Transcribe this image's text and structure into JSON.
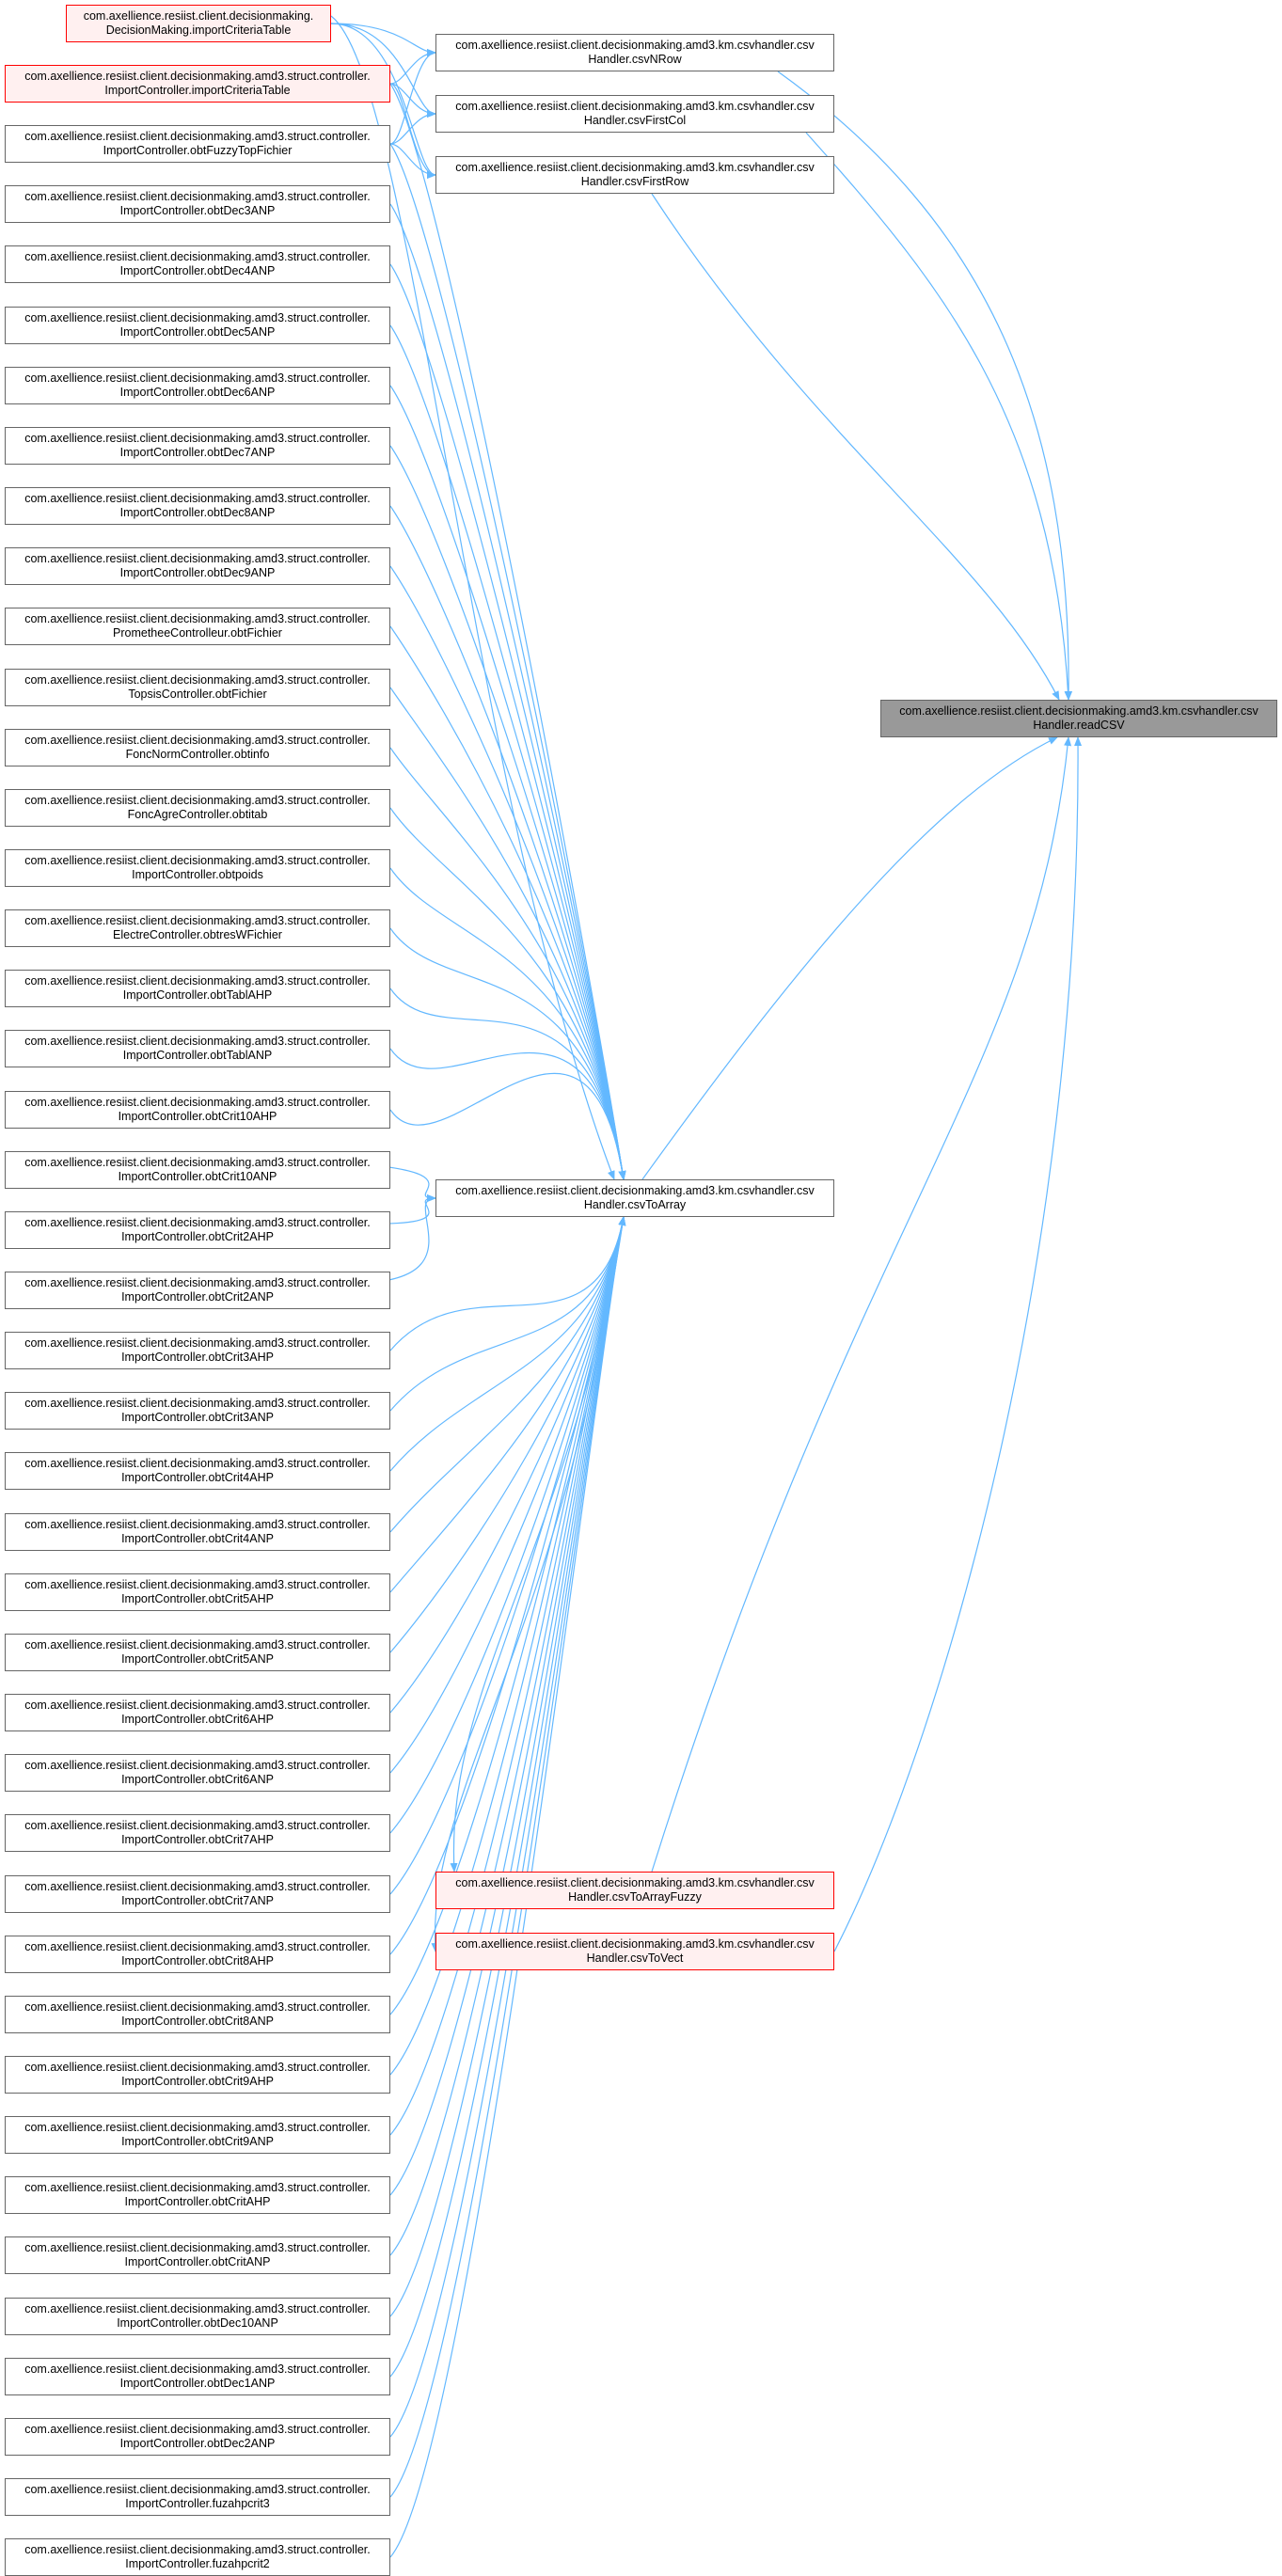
{
  "target": {
    "line1": "com.axellience.resiist.client.decisionmaking.amd3.km.csvhandler.csv",
    "line2": "Handler.readCSV"
  },
  "middle": [
    {
      "id": "csvNRow",
      "line1": "com.axellience.resiist.client.decisionmaking.amd3.km.csvhandler.csv",
      "line2": "Handler.csvNRow",
      "highlight": false
    },
    {
      "id": "csvFirstCol",
      "line1": "com.axellience.resiist.client.decisionmaking.amd3.km.csvhandler.csv",
      "line2": "Handler.csvFirstCol",
      "highlight": false
    },
    {
      "id": "csvFirstRow",
      "line1": "com.axellience.resiist.client.decisionmaking.amd3.km.csvhandler.csv",
      "line2": "Handler.csvFirstRow",
      "highlight": false
    },
    {
      "id": "csvToArray",
      "line1": "com.axellience.resiist.client.decisionmaking.amd3.km.csvhandler.csv",
      "line2": "Handler.csvToArray",
      "highlight": false
    },
    {
      "id": "csvToArrayFuzzy",
      "line1": "com.axellience.resiist.client.decisionmaking.amd3.km.csvhandler.csv",
      "line2": "Handler.csvToArrayFuzzy",
      "highlight": true
    },
    {
      "id": "csvToVect",
      "line1": "com.axellience.resiist.client.decisionmaking.amd3.km.csvhandler.csv",
      "line2": "Handler.csvToVect",
      "highlight": true
    }
  ],
  "callers": [
    {
      "line1": "com.axellience.resiist.client.decisionmaking.",
      "line2": "DecisionMaking.importCriteriaTable",
      "highlight": true
    },
    {
      "line1": "com.axellience.resiist.client.decisionmaking.amd3.struct.controller.",
      "line2": "ImportController.importCriteriaTable",
      "highlight": true
    },
    {
      "line1": "com.axellience.resiist.client.decisionmaking.amd3.struct.controller.",
      "line2": "ImportController.obtFuzzyTopFichier",
      "highlight": false
    },
    {
      "line1": "com.axellience.resiist.client.decisionmaking.amd3.struct.controller.",
      "line2": "ImportController.obtDec3ANP",
      "highlight": false
    },
    {
      "line1": "com.axellience.resiist.client.decisionmaking.amd3.struct.controller.",
      "line2": "ImportController.obtDec4ANP",
      "highlight": false
    },
    {
      "line1": "com.axellience.resiist.client.decisionmaking.amd3.struct.controller.",
      "line2": "ImportController.obtDec5ANP",
      "highlight": false
    },
    {
      "line1": "com.axellience.resiist.client.decisionmaking.amd3.struct.controller.",
      "line2": "ImportController.obtDec6ANP",
      "highlight": false
    },
    {
      "line1": "com.axellience.resiist.client.decisionmaking.amd3.struct.controller.",
      "line2": "ImportController.obtDec7ANP",
      "highlight": false
    },
    {
      "line1": "com.axellience.resiist.client.decisionmaking.amd3.struct.controller.",
      "line2": "ImportController.obtDec8ANP",
      "highlight": false
    },
    {
      "line1": "com.axellience.resiist.client.decisionmaking.amd3.struct.controller.",
      "line2": "ImportController.obtDec9ANP",
      "highlight": false
    },
    {
      "line1": "com.axellience.resiist.client.decisionmaking.amd3.struct.controller.",
      "line2": "PrometheeControlleur.obtFichier",
      "highlight": false
    },
    {
      "line1": "com.axellience.resiist.client.decisionmaking.amd3.struct.controller.",
      "line2": "TopsisController.obtFichier",
      "highlight": false
    },
    {
      "line1": "com.axellience.resiist.client.decisionmaking.amd3.struct.controller.",
      "line2": "FoncNormController.obtinfo",
      "highlight": false
    },
    {
      "line1": "com.axellience.resiist.client.decisionmaking.amd3.struct.controller.",
      "line2": "FoncAgreController.obtitab",
      "highlight": false
    },
    {
      "line1": "com.axellience.resiist.client.decisionmaking.amd3.struct.controller.",
      "line2": "ImportController.obtpoids",
      "highlight": false
    },
    {
      "line1": "com.axellience.resiist.client.decisionmaking.amd3.struct.controller.",
      "line2": "ElectreController.obtresWFichier",
      "highlight": false
    },
    {
      "line1": "com.axellience.resiist.client.decisionmaking.amd3.struct.controller.",
      "line2": "ImportController.obtTablAHP",
      "highlight": false
    },
    {
      "line1": "com.axellience.resiist.client.decisionmaking.amd3.struct.controller.",
      "line2": "ImportController.obtTablANP",
      "highlight": false
    },
    {
      "line1": "com.axellience.resiist.client.decisionmaking.amd3.struct.controller.",
      "line2": "ImportController.obtCrit10AHP",
      "highlight": false
    },
    {
      "line1": "com.axellience.resiist.client.decisionmaking.amd3.struct.controller.",
      "line2": "ImportController.obtCrit10ANP",
      "highlight": false
    },
    {
      "line1": "com.axellience.resiist.client.decisionmaking.amd3.struct.controller.",
      "line2": "ImportController.obtCrit2AHP",
      "highlight": false
    },
    {
      "line1": "com.axellience.resiist.client.decisionmaking.amd3.struct.controller.",
      "line2": "ImportController.obtCrit2ANP",
      "highlight": false
    },
    {
      "line1": "com.axellience.resiist.client.decisionmaking.amd3.struct.controller.",
      "line2": "ImportController.obtCrit3AHP",
      "highlight": false
    },
    {
      "line1": "com.axellience.resiist.client.decisionmaking.amd3.struct.controller.",
      "line2": "ImportController.obtCrit3ANP",
      "highlight": false
    },
    {
      "line1": "com.axellience.resiist.client.decisionmaking.amd3.struct.controller.",
      "line2": "ImportController.obtCrit4AHP",
      "highlight": false
    },
    {
      "line1": "com.axellience.resiist.client.decisionmaking.amd3.struct.controller.",
      "line2": "ImportController.obtCrit4ANP",
      "highlight": false
    },
    {
      "line1": "com.axellience.resiist.client.decisionmaking.amd3.struct.controller.",
      "line2": "ImportController.obtCrit5AHP",
      "highlight": false
    },
    {
      "line1": "com.axellience.resiist.client.decisionmaking.amd3.struct.controller.",
      "line2": "ImportController.obtCrit5ANP",
      "highlight": false
    },
    {
      "line1": "com.axellience.resiist.client.decisionmaking.amd3.struct.controller.",
      "line2": "ImportController.obtCrit6AHP",
      "highlight": false
    },
    {
      "line1": "com.axellience.resiist.client.decisionmaking.amd3.struct.controller.",
      "line2": "ImportController.obtCrit6ANP",
      "highlight": false
    },
    {
      "line1": "com.axellience.resiist.client.decisionmaking.amd3.struct.controller.",
      "line2": "ImportController.obtCrit7AHP",
      "highlight": false
    },
    {
      "line1": "com.axellience.resiist.client.decisionmaking.amd3.struct.controller.",
      "line2": "ImportController.obtCrit7ANP",
      "highlight": false
    },
    {
      "line1": "com.axellience.resiist.client.decisionmaking.amd3.struct.controller.",
      "line2": "ImportController.obtCrit8AHP",
      "highlight": false
    },
    {
      "line1": "com.axellience.resiist.client.decisionmaking.amd3.struct.controller.",
      "line2": "ImportController.obtCrit8ANP",
      "highlight": false
    },
    {
      "line1": "com.axellience.resiist.client.decisionmaking.amd3.struct.controller.",
      "line2": "ImportController.obtCrit9AHP",
      "highlight": false
    },
    {
      "line1": "com.axellience.resiist.client.decisionmaking.amd3.struct.controller.",
      "line2": "ImportController.obtCrit9ANP",
      "highlight": false
    },
    {
      "line1": "com.axellience.resiist.client.decisionmaking.amd3.struct.controller.",
      "line2": "ImportController.obtCritAHP",
      "highlight": false
    },
    {
      "line1": "com.axellience.resiist.client.decisionmaking.amd3.struct.controller.",
      "line2": "ImportController.obtCritANP",
      "highlight": false
    },
    {
      "line1": "com.axellience.resiist.client.decisionmaking.amd3.struct.controller.",
      "line2": "ImportController.obtDec10ANP",
      "highlight": false
    },
    {
      "line1": "com.axellience.resiist.client.decisionmaking.amd3.struct.controller.",
      "line2": "ImportController.obtDec1ANP",
      "highlight": false
    },
    {
      "line1": "com.axellience.resiist.client.decisionmaking.amd3.struct.controller.",
      "line2": "ImportController.obtDec2ANP",
      "highlight": false
    },
    {
      "line1": "com.axellience.resiist.client.decisionmaking.amd3.struct.controller.",
      "line2": "ImportController.fuzahpcrit3",
      "highlight": false
    },
    {
      "line1": "com.axellience.resiist.client.decisionmaking.amd3.struct.controller.",
      "line2": "ImportController.fuzahpcrit2",
      "highlight": false
    }
  ],
  "colors": {
    "edge": "#63b8ff",
    "node_border": "#666666",
    "highlight_border": "#ff0000",
    "highlight_fill": "#fff0f0",
    "target_fill": "#999999"
  }
}
